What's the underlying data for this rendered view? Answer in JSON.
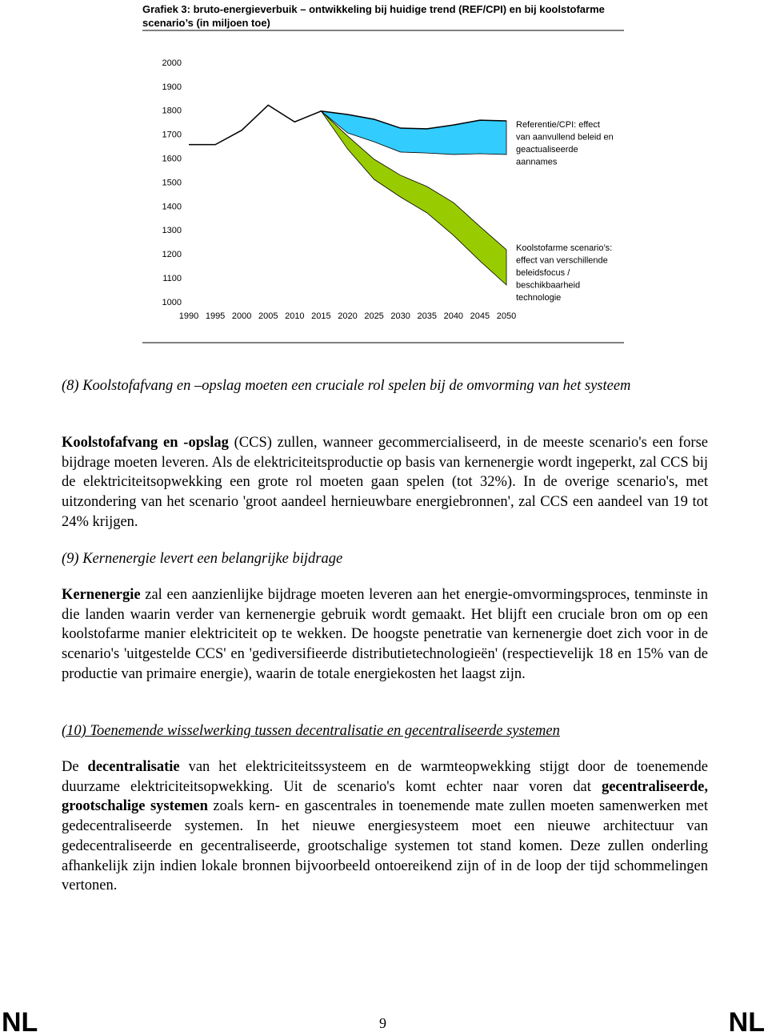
{
  "chart_data": {
    "type": "band-line",
    "title": "Grafiek 3: bruto-energieverbuik – ontwikkeling bij huidige trend (REF/CPI) en bij koolstofarme scenario’s (in miljoen toe)",
    "categories": [
      "1990",
      "1995",
      "2000",
      "2005",
      "2010",
      "2015",
      "2020",
      "2025",
      "2030",
      "2035",
      "2040",
      "2045",
      "2050"
    ],
    "series": [
      {
        "color": "#000000",
        "values": [
          1660,
          1660,
          1720,
          1825,
          1755,
          1800,
          1786,
          1766,
          1729,
          1726,
          1742,
          1762,
          1759
        ]
      }
    ],
    "bands": [
      {
        "color": "#33ccff",
        "high": [
          null,
          null,
          null,
          null,
          null,
          1800,
          1786,
          1766,
          1729,
          1726,
          1742,
          1762,
          1759
        ],
        "low": [
          null,
          null,
          null,
          null,
          null,
          1800,
          1709,
          1672,
          1629,
          1625,
          1619,
          1622,
          1619
        ]
      },
      {
        "color": "#99cc00",
        "high": [
          null,
          null,
          null,
          null,
          null,
          1800,
          1696,
          1599,
          1532,
          1485,
          1418,
          1318,
          1221
        ],
        "low": [
          null,
          null,
          null,
          null,
          null,
          1800,
          1642,
          1515,
          1441,
          1375,
          1281,
          1174,
          1074
        ]
      }
    ],
    "annotations": [
      [
        "Referentie/CPI: effect",
        "van aanvullend beleid en",
        "geactualiseerde",
        "aannames"
      ],
      [
        "Koolstofarme scenario’s:",
        "effect van verschillende",
        "beleidsfocus /",
        "beschikbaarheid",
        "technologie"
      ]
    ],
    "ylim": [
      1000,
      2000
    ],
    "yticks": [
      1000,
      1100,
      1200,
      1300,
      1400,
      1500,
      1600,
      1700,
      1800,
      1900,
      2000
    ]
  },
  "document": {
    "sections": [
      {
        "heading": "(8) Koolstofafvang en –opslag moeten een cruciale rol spelen bij de omvorming van het systeem",
        "underline": false,
        "segments": [
          {
            "text": "Koolstofafvang en -opslag",
            "bold": true
          },
          {
            "text": " (CCS) zullen, wanneer gecommercialiseerd, in de meeste scenario's een forse bijdrage moeten leveren. Als de elektriciteitsproductie op basis van kernenergie wordt ingeperkt, zal CCS bij de elektriciteitsopwekking een grote rol moeten gaan spelen (tot 32%). In de overige scenario's, met uitzondering van het scenario 'groot aandeel hernieuwbare energiebronnen', zal CCS een aandeel van 19 tot 24% krijgen."
          }
        ]
      },
      {
        "heading": "(9) Kernenergie levert een belangrijke bijdrage",
        "underline": false,
        "segments": [
          {
            "text": "Kernenergie",
            "bold": true
          },
          {
            "text": " zal een aanzienlijke bijdrage moeten leveren aan het energie-omvormingsproces, tenminste in die landen waarin verder van kernenergie gebruik wordt gemaakt. Het blijft een cruciale bron om op een koolstofarme manier elektriciteit op te wekken. De hoogste penetratie van kernenergie doet zich voor in de scenario's 'uitgestelde CCS' en 'gediversifieerde distributietechnologieën' (respectievelijk 18 en 15% van de productie van primaire energie), waarin de totale energiekosten het laagst zijn."
          }
        ]
      },
      {
        "heading": "(10) Toenemende wisselwerking tussen decentralisatie en gecentraliseerde systemen",
        "underline": true,
        "segments": [
          {
            "text": "De "
          },
          {
            "text": "decentralisatie",
            "bold": true
          },
          {
            "text": " van het elektriciteitssysteem en de warmteopwekking stijgt door de toenemende duurzame elektriciteitsopwekking. Uit de scenario's komt echter naar voren dat "
          },
          {
            "text": "gecentraliseerde, grootschalige systemen",
            "bold": true
          },
          {
            "text": " zoals kern- en gascentrales in toenemende mate zullen moeten samenwerken met gedecentraliseerde systemen. In het nieuwe energiesysteem moet een nieuwe architectuur van gedecentraliseerde en gecentraliseerde, grootschalige systemen tot stand komen. Deze zullen onderling afhankelijk zijn indien lokale bronnen bijvoorbeeld ontoereikend zijn of in de loop der tijd schommelingen vertonen."
          }
        ]
      }
    ]
  },
  "footer": {
    "left": "NL",
    "page": "9",
    "right": "NL"
  }
}
